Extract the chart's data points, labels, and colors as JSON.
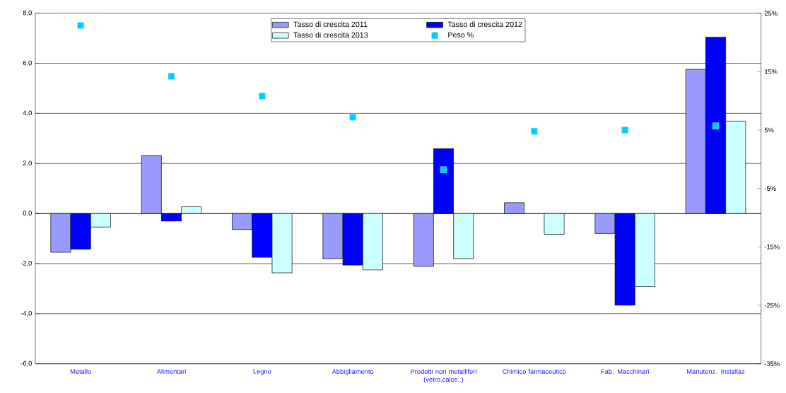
{
  "chart_data": {
    "type": "bar",
    "categories": [
      "Metallo",
      "Alimentari",
      "Legno",
      "Abbigliamento",
      "Prodotti non metalliferi (vetro,calce..)",
      "Chimico farmaceutico",
      "Fab. Macchinari",
      "Manutenz. Installaz"
    ],
    "series": [
      {
        "name": "Tasso di crescita 2011",
        "color": "#9999ff",
        "values": [
          -1.55,
          2.32,
          -0.64,
          -1.8,
          -2.11,
          0.43,
          -0.8,
          5.76
        ]
      },
      {
        "name": "Tasso di crescita 2012",
        "color": "#0000ff",
        "values": [
          -1.42,
          -0.3,
          -1.75,
          -2.06,
          2.59,
          null,
          -3.66,
          7.04
        ]
      },
      {
        "name": "Tasso di crescita 2013",
        "color": "#ccffff",
        "values": [
          -0.54,
          0.27,
          -2.37,
          -2.25,
          -1.8,
          -0.83,
          -2.92,
          3.69
        ]
      },
      {
        "name": "Peso %",
        "type": "scatter",
        "axis": "y2",
        "marker": "square",
        "color": "#00ccff",
        "values": [
          22.9,
          14.2,
          10.8,
          7.2,
          -1.8,
          4.8,
          5.0,
          5.7
        ]
      }
    ],
    "ylim": [
      -6,
      8
    ],
    "yticks": [
      {
        "value": -6,
        "label": "-6,0"
      },
      {
        "value": -4,
        "label": "-4,0"
      },
      {
        "value": -2,
        "label": "-2,0"
      },
      {
        "value": 0,
        "label": "0,0"
      },
      {
        "value": 2,
        "label": "2,0"
      },
      {
        "value": 4,
        "label": "4,0"
      },
      {
        "value": 6,
        "label": "6,0"
      },
      {
        "value": 8,
        "label": "8,0"
      }
    ],
    "y2lim": [
      -35,
      25
    ],
    "y2ticks": [
      {
        "value": -35,
        "label": "-35%"
      },
      {
        "value": -25,
        "label": "-25%"
      },
      {
        "value": -15,
        "label": "-15%"
      },
      {
        "value": -5,
        "label": "-5%"
      },
      {
        "value": 5,
        "label": "5%"
      },
      {
        "value": 15,
        "label": "15%"
      },
      {
        "value": 25,
        "label": "25%"
      }
    ],
    "grid": "y",
    "legend": "top"
  }
}
